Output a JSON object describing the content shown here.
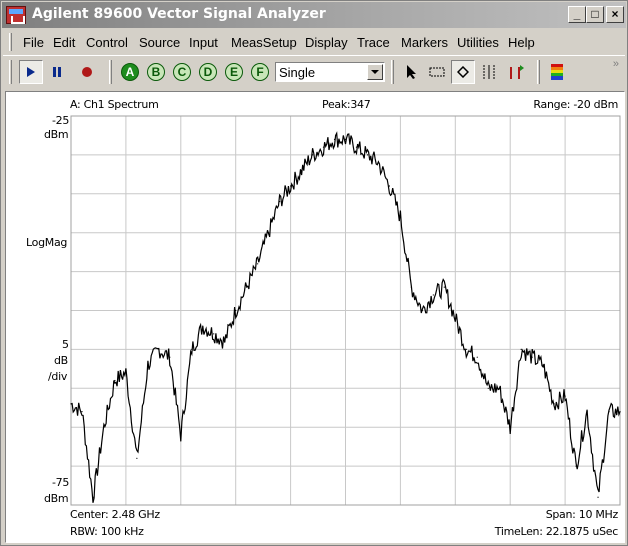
{
  "window": {
    "title": "Agilent 89600 Vector Signal Analyzer",
    "minimize": "_",
    "maximize": "□",
    "close": "×"
  },
  "menu": [
    "File",
    "Edit",
    "Control",
    "Source",
    "Input",
    "MeasSetup",
    "Display",
    "Trace",
    "Markers",
    "Utilities",
    "Help"
  ],
  "toolbar": {
    "trace_buttons": [
      "A",
      "B",
      "C",
      "D",
      "E",
      "F"
    ],
    "active_trace": "A",
    "mode": "Single",
    "overflow": "»"
  },
  "trace": {
    "name": "A: Ch1 Spectrum",
    "peak": "Peak:347",
    "range": "Range: -20 dBm",
    "top_value": "-25",
    "top_unit": "dBm",
    "format": "LogMag",
    "scale_value": "5",
    "scale_unit": "dB",
    "scale_per": "/div",
    "bottom_value": "-75",
    "bottom_unit": "dBm",
    "center": "Center: 2.48 GHz",
    "rbw": "RBW: 100 kHz",
    "span": "Span: 10 MHz",
    "timelen": "TimeLen: 22.1875 uSec"
  },
  "chart_data": {
    "type": "line",
    "title": "A: Ch1 Spectrum",
    "xlabel": "",
    "ylabel": "LogMag",
    "x_unit": "MHz offset from center",
    "xlim": [
      -5,
      5
    ],
    "ylim": [
      -75,
      -25
    ],
    "grid": true,
    "x": [
      -5.0,
      -4.8,
      -4.6,
      -4.4,
      -4.2,
      -4.0,
      -3.8,
      -3.6,
      -3.4,
      -3.2,
      -3.0,
      -2.8,
      -2.6,
      -2.4,
      -2.2,
      -2.0,
      -1.8,
      -1.6,
      -1.4,
      -1.2,
      -1.0,
      -0.8,
      -0.6,
      -0.4,
      -0.2,
      0.0,
      0.2,
      0.4,
      0.6,
      0.8,
      1.0,
      1.2,
      1.4,
      1.6,
      1.8,
      2.0,
      2.2,
      2.4,
      2.6,
      2.8,
      3.0,
      3.2,
      3.4,
      3.6,
      3.8,
      4.0,
      4.2,
      4.4,
      4.6,
      4.8,
      5.0
    ],
    "y": [
      -62,
      -63,
      -74,
      -65,
      -59,
      -58,
      -69,
      -57,
      -55,
      -56,
      -66,
      -55,
      -52,
      -53,
      -54,
      -50,
      -47,
      -44,
      -40,
      -36,
      -34,
      -32,
      -30,
      -29,
      -28,
      -28,
      -29,
      -30,
      -31,
      -34,
      -38,
      -47,
      -50,
      -48,
      -47,
      -51,
      -55,
      -56,
      -60,
      -60,
      -65,
      -55,
      -56,
      -57,
      -62,
      -61,
      -70,
      -63,
      -74,
      -63,
      -63
    ]
  }
}
